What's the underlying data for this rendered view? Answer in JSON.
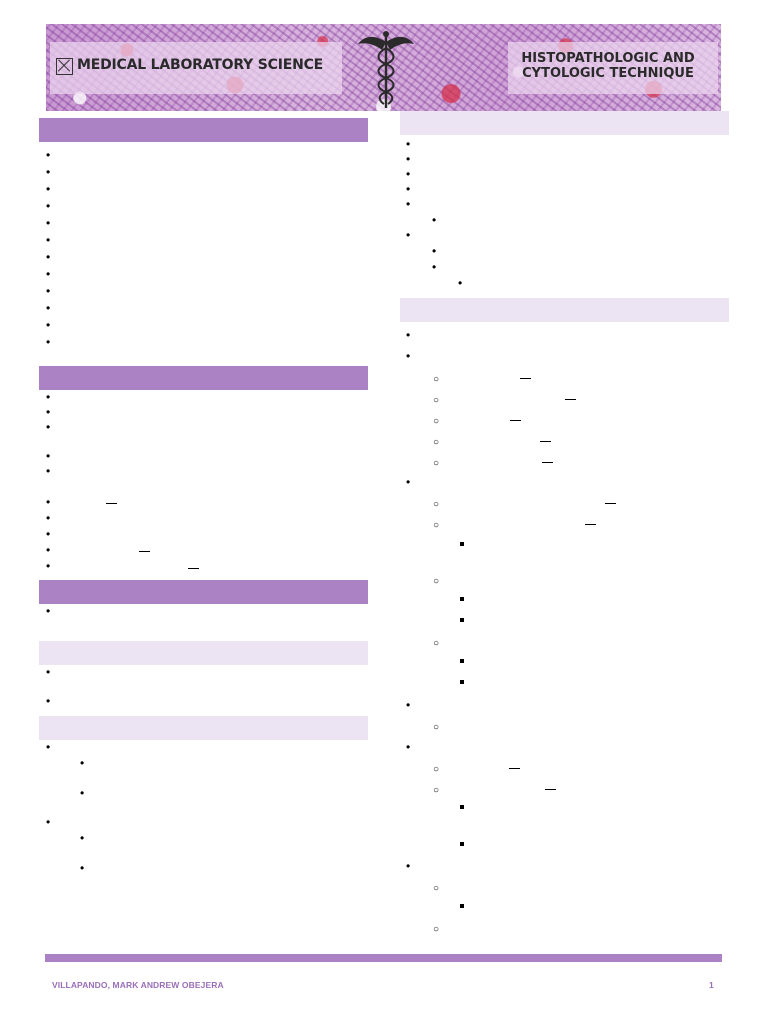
{
  "banner": {
    "left_title": "MEDICAL LABORATORY SCIENCE",
    "right_title": "HISTOPATHOLOGIC AND CYTOLOGIC TECHNIQUE",
    "logo_icon": "square-x-logo-icon",
    "emblem_icon": "caduceus-icon"
  },
  "colors": {
    "header_dark": "#ab83c4",
    "header_light": "#ede4f3",
    "footer_rule": "#ab83c4",
    "footer_text": "#9a6fb8"
  },
  "footer": {
    "author": "VILLAPANDO, MARK ANDREW OBEJERA",
    "page_number": "1"
  }
}
